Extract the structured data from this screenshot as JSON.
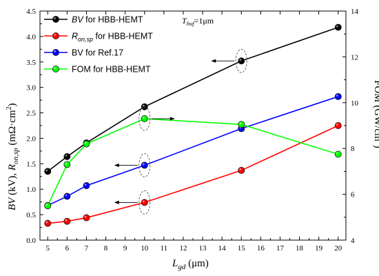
{
  "chart_data": {
    "type": "line",
    "x": [
      5,
      6,
      7,
      10,
      15,
      20
    ],
    "xlim": [
      4.6,
      20.4
    ],
    "xticks": [
      5,
      6,
      7,
      8,
      9,
      10,
      11,
      12,
      13,
      14,
      15,
      16,
      17,
      18,
      19,
      20
    ],
    "ylim_left": [
      0,
      4.5
    ],
    "yticks_left": [
      "0.0",
      "0.5",
      "1.0",
      "1.5",
      "2.0",
      "2.5",
      "3.0",
      "3.5",
      "4.0",
      "4.5"
    ],
    "ylim_right": [
      4,
      14
    ],
    "yticks_right": [
      "4",
      "6",
      "8",
      "10",
      "12",
      "14"
    ],
    "xlabel": {
      "main": "L",
      "sub": "gd",
      "tail": " (μm)"
    },
    "ylabel_left": {
      "p1": "BV",
      "p2": " (kV), ",
      "p3": "R",
      "p4": "on,sp",
      "p5": " (mΩ·cm",
      "p6": "2",
      "p7": ")"
    },
    "ylabel_right": {
      "p1": "FOM (GW/cm",
      "p2": "2",
      "p3": ")"
    },
    "annotation": {
      "main": "T",
      "sub": "buf",
      "tail": "=1μm"
    },
    "series": [
      {
        "name": "BV for HBB-HEMT",
        "name_main": "BV",
        "name_sub": "",
        "name_tail": " for HBB-HEMT",
        "italic": true,
        "axis": "left",
        "color": "#000000",
        "values": [
          1.35,
          1.64,
          1.91,
          2.62,
          3.52,
          4.18
        ]
      },
      {
        "name": "Ron,sp for HBB-HEMT",
        "name_main": "R",
        "name_sub": "on,sp",
        "name_tail": " for HBB-HEMT",
        "italic": true,
        "axis": "left",
        "color": "#ff0000",
        "values": [
          0.33,
          0.37,
          0.44,
          0.74,
          1.37,
          2.25
        ]
      },
      {
        "name": "BV for Ref.17",
        "name_main": "BV for Ref.17",
        "name_sub": "",
        "name_tail": "",
        "italic": false,
        "axis": "left",
        "color": "#0000ff",
        "values": [
          0.68,
          0.86,
          1.07,
          1.47,
          2.19,
          2.82
        ]
      },
      {
        "name": "FOM for HBB-HEMT",
        "name_main": "FOM for HBB-HEMT",
        "name_sub": "",
        "name_tail": "",
        "italic": false,
        "axis": "right",
        "color": "#00ff00",
        "values": [
          5.5,
          7.3,
          8.2,
          9.3,
          9.05,
          7.75
        ]
      }
    ],
    "callouts": [
      {
        "series": 0,
        "index": 4,
        "direction": "left"
      },
      {
        "series": 3,
        "index": 3,
        "direction": "right"
      },
      {
        "series": 2,
        "index": 3,
        "direction": "left"
      },
      {
        "series": 1,
        "index": 3,
        "direction": "left"
      }
    ],
    "legend_position": "top-left",
    "grid": false
  }
}
